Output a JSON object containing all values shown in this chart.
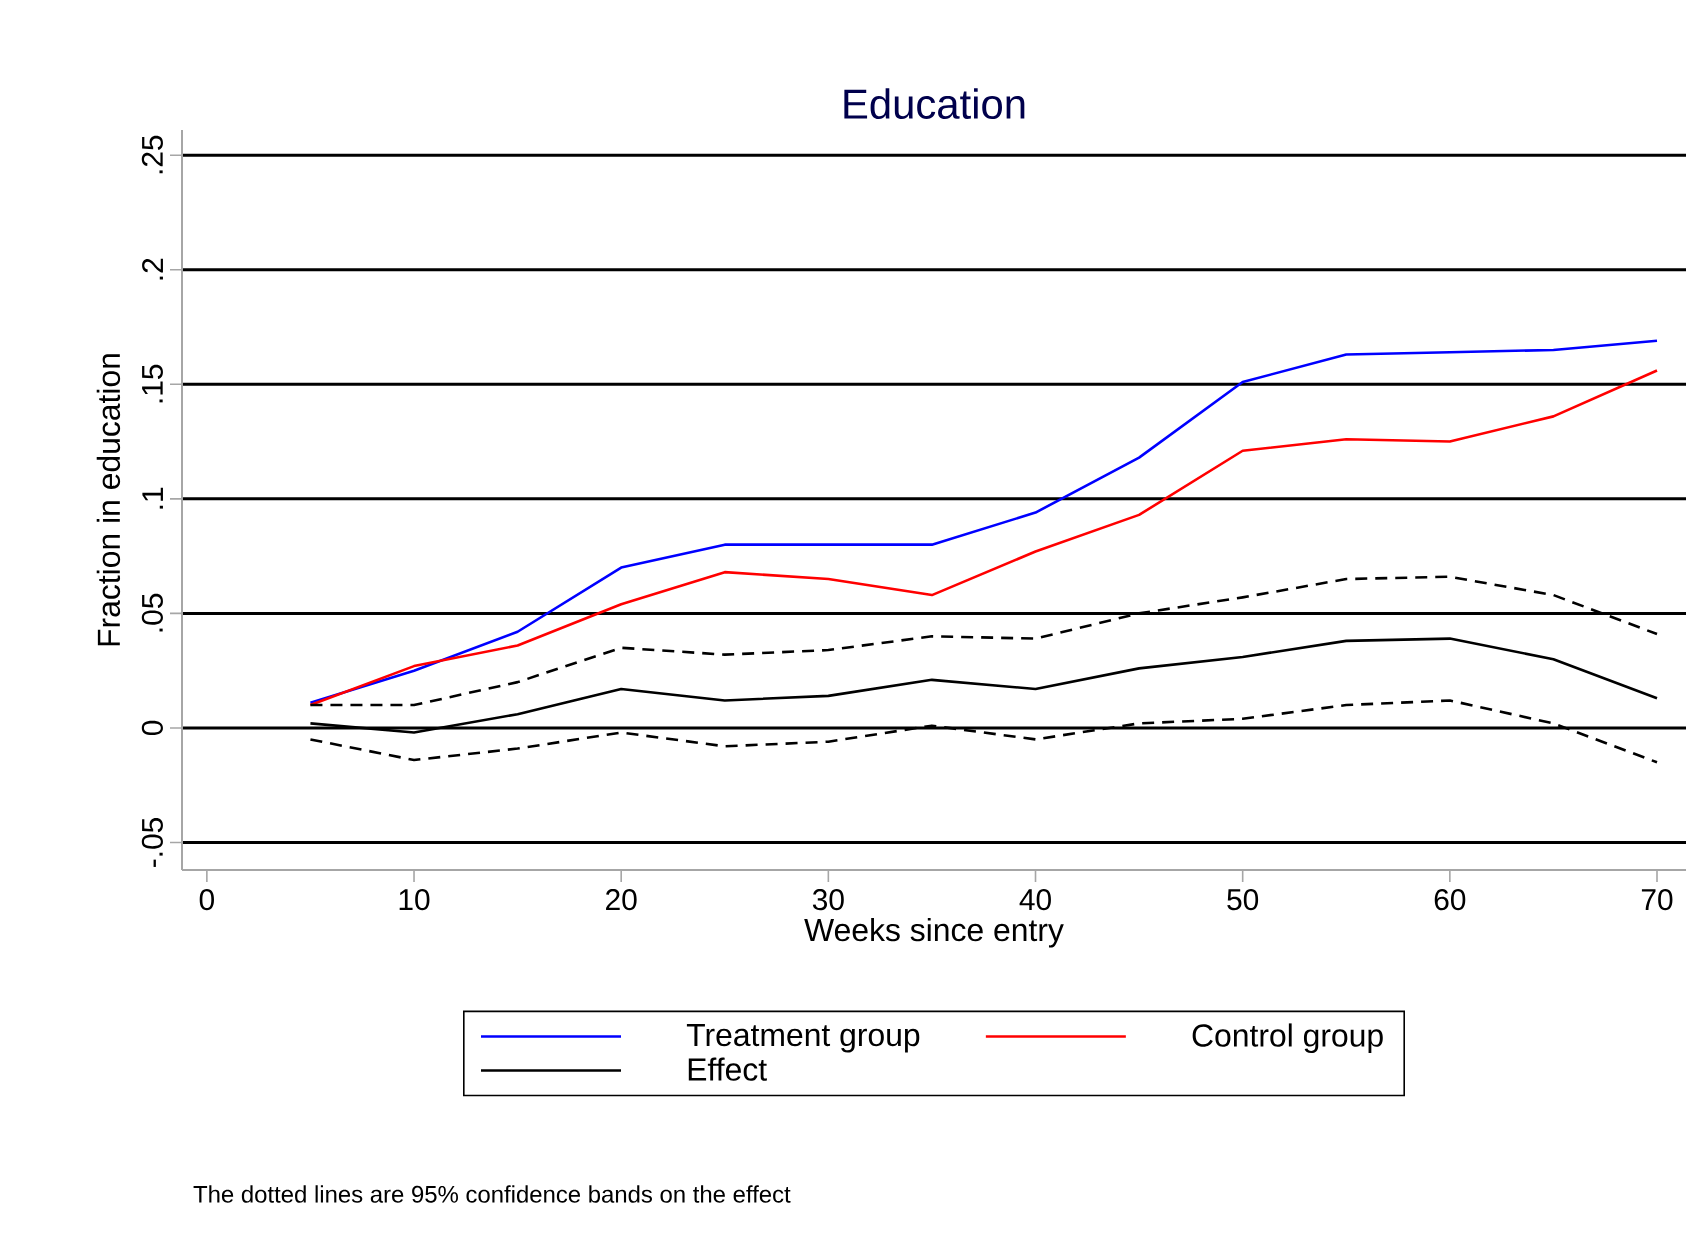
{
  "chart_data": {
    "type": "line",
    "title": "Education",
    "xlabel": "Weeks since entry",
    "ylabel": "Fraction in education",
    "x": [
      5,
      10,
      15,
      20,
      25,
      30,
      35,
      40,
      45,
      50,
      55,
      60,
      65,
      70
    ],
    "series": [
      {
        "name": "Treatment group",
        "color": "#0000ff",
        "values": [
          0.011,
          0.025,
          0.042,
          0.07,
          0.08,
          0.08,
          0.08,
          0.094,
          0.118,
          0.151,
          0.163,
          0.164,
          0.165,
          0.169
        ]
      },
      {
        "name": "Control group",
        "color": "#ff0000",
        "values": [
          0.01,
          0.027,
          0.036,
          0.054,
          0.068,
          0.065,
          0.058,
          0.077,
          0.093,
          0.121,
          0.126,
          0.125,
          0.136,
          0.156
        ]
      },
      {
        "name": "Effect",
        "color": "#000000",
        "values": [
          0.002,
          -0.002,
          0.006,
          0.017,
          0.012,
          0.014,
          0.021,
          0.017,
          0.026,
          0.031,
          0.038,
          0.039,
          0.03,
          0.013
        ]
      },
      {
        "color": "#000000",
        "line_style": "dashed",
        "values": [
          0.01,
          0.01,
          0.02,
          0.035,
          0.032,
          0.034,
          0.04,
          0.039,
          0.05,
          0.057,
          0.065,
          0.066,
          0.058,
          0.041
        ]
      },
      {
        "color": "#000000",
        "line_style": "dashed",
        "values": [
          -0.005,
          -0.014,
          -0.009,
          -0.002,
          -0.008,
          -0.006,
          0.001,
          -0.005,
          0.002,
          0.004,
          0.01,
          0.012,
          0.002,
          -0.015
        ]
      }
    ],
    "xlim": [
      -1.2,
      71.4
    ],
    "xticks": [
      0,
      10,
      20,
      30,
      40,
      50,
      60,
      70
    ],
    "ylim": [
      -0.062,
      0.261
    ],
    "yticks": [
      {
        "value": -0.05,
        "label": "-.05"
      },
      {
        "value": 0,
        "label": "0"
      },
      {
        "value": 0.05,
        "label": ".05"
      },
      {
        "value": 0.1,
        "label": ".1"
      },
      {
        "value": 0.15,
        "label": ".15"
      },
      {
        "value": 0.2,
        "label": ".2"
      },
      {
        "value": 0.25,
        "label": ".25"
      }
    ],
    "grid": "y",
    "legend": "bottom",
    "annotations": [
      "The dotted lines are 95% confidence bands on the effect"
    ]
  }
}
